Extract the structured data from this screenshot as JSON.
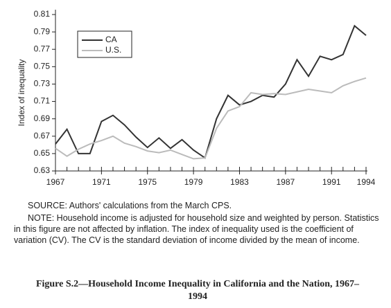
{
  "chart_data": {
    "type": "line",
    "y_label": "Index of inequality",
    "x": [
      1967,
      1968,
      1969,
      1970,
      1971,
      1972,
      1973,
      1974,
      1975,
      1976,
      1977,
      1978,
      1979,
      1980,
      1981,
      1982,
      1983,
      1984,
      1985,
      1986,
      1987,
      1988,
      1989,
      1990,
      1991,
      1992,
      1993,
      1994
    ],
    "series": [
      {
        "name": "CA",
        "color": "#333333",
        "values": [
          0.661,
          0.678,
          0.65,
          0.65,
          0.687,
          0.694,
          0.683,
          0.669,
          0.657,
          0.668,
          0.656,
          0.666,
          0.654,
          0.645,
          0.69,
          0.717,
          0.706,
          0.71,
          0.717,
          0.715,
          0.73,
          0.758,
          0.739,
          0.762,
          0.758,
          0.764,
          0.797,
          0.786
        ]
      },
      {
        "name": "U.S.",
        "color": "#bbbbbb",
        "values": [
          0.656,
          0.647,
          0.655,
          0.661,
          0.665,
          0.67,
          0.662,
          0.658,
          0.653,
          0.651,
          0.654,
          0.649,
          0.644,
          0.645,
          0.679,
          0.699,
          0.704,
          0.72,
          0.718,
          0.719,
          0.718,
          0.721,
          0.724,
          0.722,
          0.72,
          0.728,
          0.733,
          0.737
        ]
      }
    ],
    "xlim": [
      1967,
      1994
    ],
    "xticks": [
      1967,
      1971,
      1975,
      1979,
      1983,
      1987,
      1991,
      1994
    ],
    "ylim": [
      0.63,
      0.81
    ],
    "yticks": [
      0.63,
      0.65,
      0.67,
      0.69,
      0.71,
      0.73,
      0.75,
      0.77,
      0.79,
      0.81
    ],
    "legend": "upper-left",
    "grid": false,
    "source": "SOURCE:  Authors' calculations from the March CPS.",
    "note": "NOTE:  Household income is adjusted for household size and weighted by person. Statistics in this figure are not affected by inflation.  The index of inequality used is the coefficient of variation (CV).  The CV is the standard deviation of income divided by the mean of income.",
    "caption": "Figure S.2—Household Income Inequality in California and the Nation, 1967–1994"
  }
}
